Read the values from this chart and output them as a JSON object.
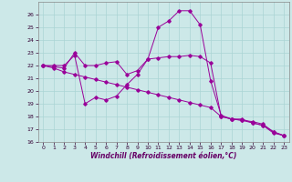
{
  "xlabel": "Windchill (Refroidissement éolien,°C)",
  "background_color": "#cce8e8",
  "line_color": "#990099",
  "xlim": [
    -0.5,
    23.5
  ],
  "ylim": [
    16,
    27
  ],
  "yticks": [
    16,
    17,
    18,
    19,
    20,
    21,
    22,
    23,
    24,
    25,
    26
  ],
  "xticks": [
    0,
    1,
    2,
    3,
    4,
    5,
    6,
    7,
    8,
    9,
    10,
    11,
    12,
    13,
    14,
    15,
    16,
    17,
    18,
    19,
    20,
    21,
    22,
    23
  ],
  "series": [
    {
      "x": [
        0,
        1,
        2,
        3,
        4,
        5,
        6,
        7,
        8,
        9,
        10,
        11,
        12,
        13,
        14,
        15,
        16,
        17,
        18,
        19,
        20,
        21,
        22,
        23
      ],
      "y": [
        22,
        22,
        22,
        22.8,
        19,
        19.5,
        19.3,
        19.6,
        20.5,
        21.3,
        22.5,
        25.0,
        25.5,
        26.3,
        26.3,
        25.2,
        20.8,
        18.1,
        17.8,
        17.8,
        17.5,
        17.3,
        16.7,
        16.5
      ]
    },
    {
      "x": [
        0,
        1,
        2,
        3,
        4,
        5,
        6,
        7,
        8,
        9,
        10,
        11,
        12,
        13,
        14,
        15,
        16,
        17,
        18,
        19,
        20,
        21,
        22,
        23
      ],
      "y": [
        22.0,
        21.8,
        21.5,
        21.3,
        21.1,
        20.9,
        20.7,
        20.5,
        20.3,
        20.1,
        19.9,
        19.7,
        19.5,
        19.3,
        19.1,
        18.9,
        18.7,
        18.0,
        17.8,
        17.7,
        17.5,
        17.3,
        16.8,
        16.5
      ]
    },
    {
      "x": [
        0,
        1,
        2,
        3,
        4,
        5,
        6,
        7,
        8,
        9,
        10,
        11,
        12,
        13,
        14,
        15,
        16,
        17,
        18,
        19,
        20,
        21,
        22,
        23
      ],
      "y": [
        22.0,
        21.9,
        21.8,
        23.0,
        22.0,
        22.0,
        22.2,
        22.3,
        21.3,
        21.6,
        22.5,
        22.6,
        22.7,
        22.7,
        22.8,
        22.7,
        22.2,
        18.0,
        17.8,
        17.7,
        17.6,
        17.4,
        16.8,
        16.5
      ]
    }
  ]
}
